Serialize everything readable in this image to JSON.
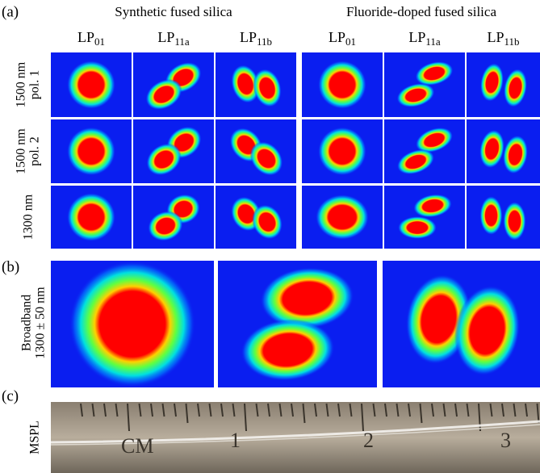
{
  "figure": {
    "panel_a": {
      "label": "(a)",
      "groups": [
        {
          "title": "Synthetic fused silica",
          "columns": [
            {
              "base": "LP",
              "sub": "01"
            },
            {
              "base": "LP",
              "sub": "11a"
            },
            {
              "base": "LP",
              "sub": "11b"
            }
          ]
        },
        {
          "title": "Fluoride-doped fused silica",
          "columns": [
            {
              "base": "LP",
              "sub": "01"
            },
            {
              "base": "LP",
              "sub": "11a"
            },
            {
              "base": "LP",
              "sub": "11b"
            }
          ]
        }
      ],
      "rows": [
        [
          "1500 nm",
          "pol. 1"
        ],
        [
          "1500 nm",
          "pol. 2"
        ],
        [
          "1300 nm"
        ]
      ]
    },
    "panel_b": {
      "label": "(b)",
      "row_label": [
        "Broadband",
        "1300 ± 50 nm"
      ]
    },
    "panel_c": {
      "label": "(c)",
      "row_label": "MSPL",
      "ruler_labels": [
        "CM",
        "1",
        "2",
        "3"
      ]
    }
  }
}
